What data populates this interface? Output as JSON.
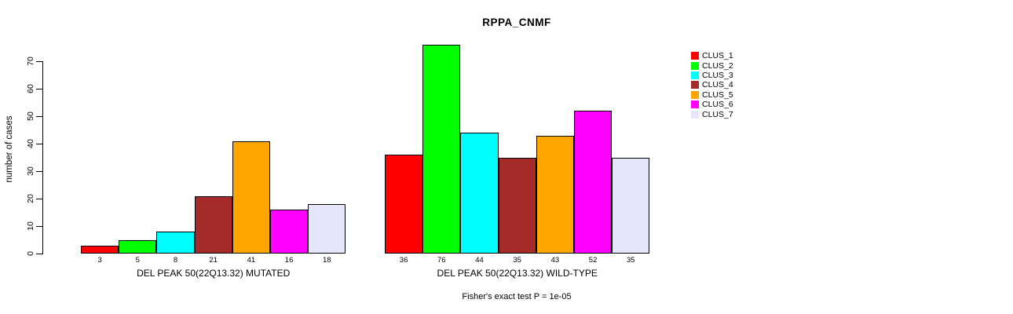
{
  "chart_data": {
    "type": "bar",
    "title": "RPPA_CNMF",
    "ylabel": "number of cases",
    "ylim": [
      0,
      76
    ],
    "yticks": [
      0,
      10,
      20,
      30,
      40,
      50,
      60,
      70
    ],
    "grid": false,
    "legend_position": "right",
    "categories": [
      "DEL PEAK 50(22Q13.32) MUTATED",
      "DEL PEAK 50(22Q13.32) WILD-TYPE"
    ],
    "series": [
      {
        "name": "CLUS_1",
        "color": "#FF0000",
        "values": [
          3,
          36
        ]
      },
      {
        "name": "CLUS_2",
        "color": "#00FF00",
        "values": [
          5,
          76
        ]
      },
      {
        "name": "CLUS_3",
        "color": "#00FFFF",
        "values": [
          8,
          44
        ]
      },
      {
        "name": "CLUS_4",
        "color": "#A52A2A",
        "values": [
          21,
          35
        ]
      },
      {
        "name": "CLUS_5",
        "color": "#FFA500",
        "values": [
          41,
          43
        ]
      },
      {
        "name": "CLUS_6",
        "color": "#FF00FF",
        "values": [
          16,
          52
        ]
      },
      {
        "name": "CLUS_7",
        "color": "#E6E6FA",
        "values": [
          18,
          35
        ]
      }
    ],
    "bar_value_labels_shown": true,
    "footnote": "Fisher's exact test P = 1e-05"
  }
}
